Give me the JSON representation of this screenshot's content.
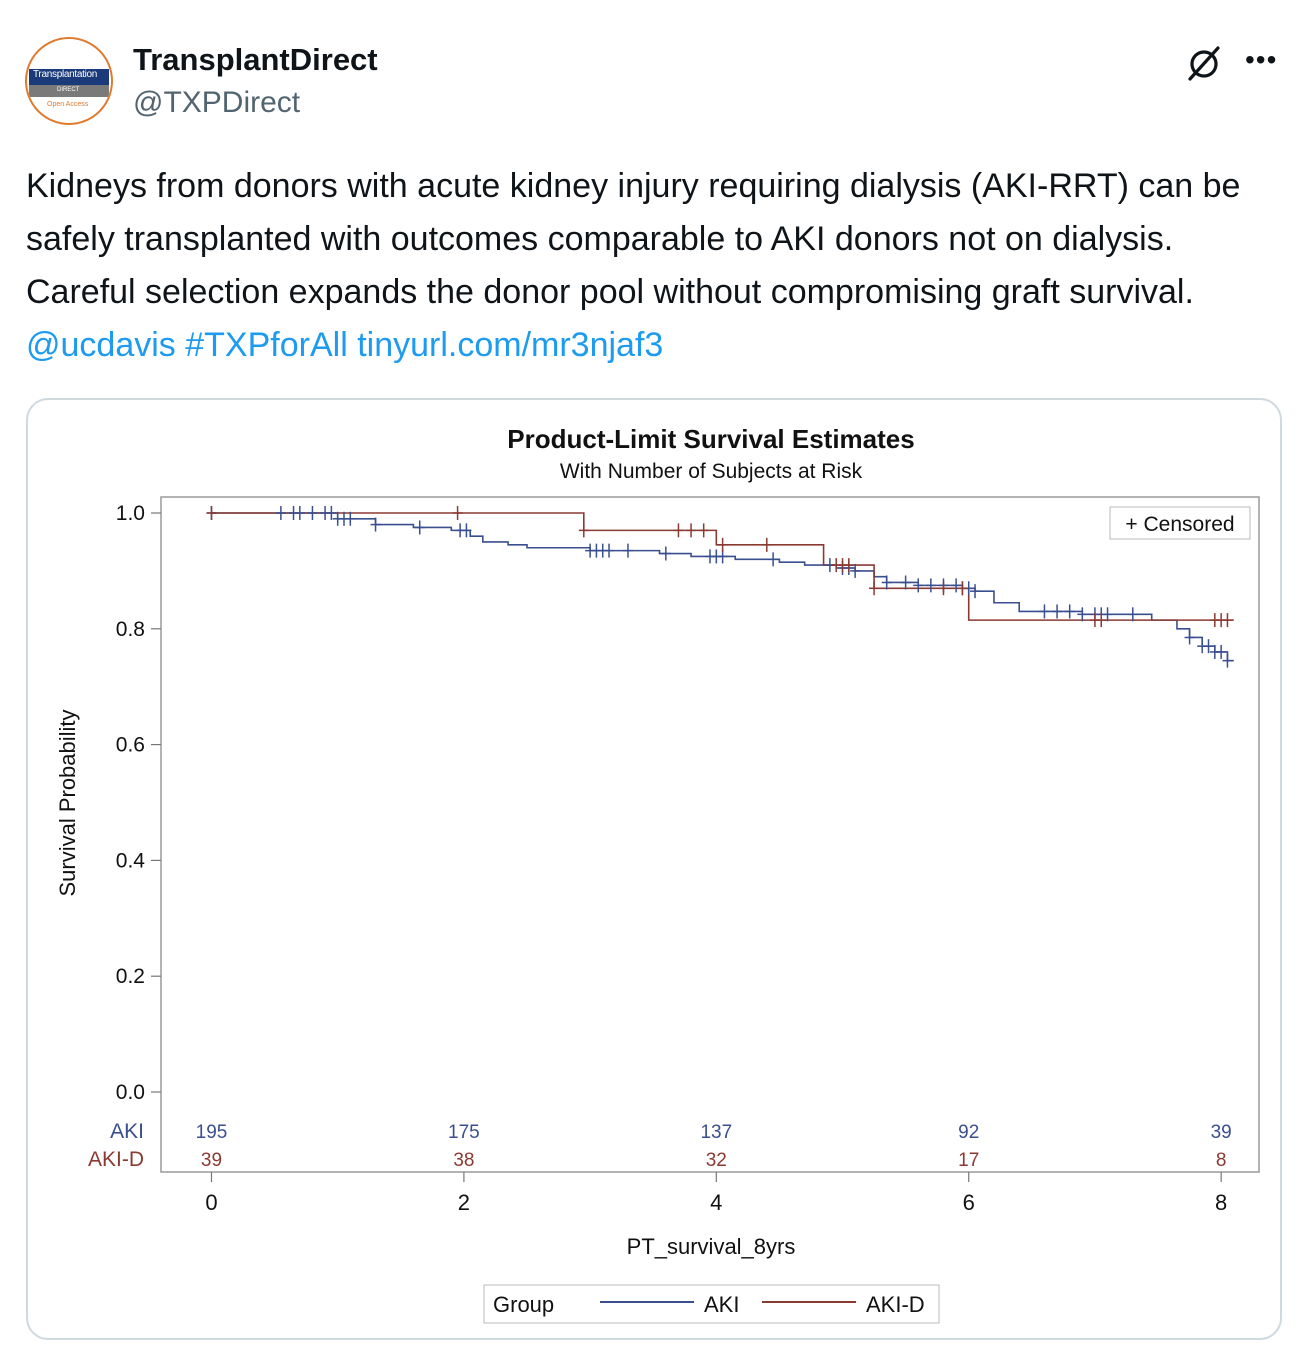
{
  "account": {
    "display_name": "TransplantDirect",
    "handle": "@TXPDirect",
    "avatar_text": "Transplantation DIRECT Open Access"
  },
  "tweet": {
    "text": "Kidneys from donors with acute kidney injury requiring dialysis (AKI-RRT) can be safely transplanted with outcomes comparable to AKI donors not on dialysis. Careful selection expands the donor pool without compromising graft survival. ",
    "mention": "@ucdavis",
    "hashtag": "#TXPforAll",
    "link": "tinyurl.com/mr3njaf3"
  },
  "icons": {
    "grok": "slashed-circle-icon",
    "more": "more-icon"
  },
  "colors": {
    "aki": "#3a4f8f",
    "akid": "#8b3a32",
    "link": "#1d9bf0"
  },
  "chart_data": {
    "type": "line",
    "title": "Product-Limit Survival Estimates",
    "subtitle": "With Number of Subjects at Risk",
    "xlabel": "PT_survival_8yrs",
    "ylabel": "Survival Probability",
    "xlim": [
      -0.4,
      8.3
    ],
    "ylim": [
      0,
      1.0
    ],
    "x_ticks": [
      "0",
      "2",
      "4",
      "6",
      "8"
    ],
    "y_ticks": [
      "0.0",
      "0.2",
      "0.4",
      "0.6",
      "0.8",
      "1.0"
    ],
    "censored_legend": "+ Censored",
    "legend_title": "Group",
    "series": [
      {
        "name": "AKI",
        "color": "#3a4f8f",
        "steps": [
          [
            0,
            1.0
          ],
          [
            1.0,
            0.99
          ],
          [
            1.3,
            0.98
          ],
          [
            1.6,
            0.975
          ],
          [
            1.9,
            0.97
          ],
          [
            2.05,
            0.96
          ],
          [
            2.15,
            0.95
          ],
          [
            2.35,
            0.945
          ],
          [
            2.5,
            0.94
          ],
          [
            3.0,
            0.935
          ],
          [
            3.55,
            0.93
          ],
          [
            3.8,
            0.925
          ],
          [
            4.15,
            0.92
          ],
          [
            4.5,
            0.915
          ],
          [
            4.7,
            0.91
          ],
          [
            4.95,
            0.905
          ],
          [
            5.1,
            0.9
          ],
          [
            5.25,
            0.89
          ],
          [
            5.35,
            0.88
          ],
          [
            5.6,
            0.875
          ],
          [
            5.95,
            0.87
          ],
          [
            6.05,
            0.865
          ],
          [
            6.2,
            0.845
          ],
          [
            6.4,
            0.83
          ],
          [
            6.9,
            0.825
          ],
          [
            7.45,
            0.815
          ],
          [
            7.65,
            0.8
          ],
          [
            7.75,
            0.785
          ],
          [
            7.85,
            0.77
          ],
          [
            7.95,
            0.76
          ],
          [
            8.05,
            0.745
          ]
        ],
        "end": 8.1,
        "censor_x": [
          0,
          0.55,
          0.65,
          0.7,
          0.8,
          0.9,
          0.95,
          1.0,
          1.05,
          1.1,
          1.3,
          1.65,
          1.97,
          2.02,
          3.0,
          3.05,
          3.1,
          3.15,
          3.3,
          3.6,
          3.95,
          4.0,
          4.05,
          4.45,
          4.9,
          5.0,
          5.05,
          5.1,
          5.35,
          5.5,
          5.6,
          5.7,
          5.8,
          5.9,
          5.95,
          6.0,
          6.05,
          6.6,
          6.7,
          6.8,
          6.9,
          7.0,
          7.05,
          7.1,
          7.3,
          7.75,
          7.85,
          7.9,
          7.95,
          8.0,
          8.05
        ]
      },
      {
        "name": "AKI-D",
        "color": "#8b3a32",
        "steps": [
          [
            0,
            1.0
          ],
          [
            2.95,
            0.97
          ],
          [
            4.0,
            0.945
          ],
          [
            4.85,
            0.91
          ],
          [
            5.25,
            0.87
          ],
          [
            6.0,
            0.815
          ]
        ],
        "end": 8.1,
        "censor_x": [
          0,
          1.95,
          2.95,
          3.7,
          3.8,
          3.9,
          4.05,
          4.4,
          4.95,
          5.0,
          5.05,
          5.25,
          5.8,
          5.95,
          7.0,
          7.05,
          7.95,
          8.0,
          8.05
        ]
      }
    ],
    "at_risk": {
      "x": [
        0,
        2,
        4,
        6,
        8
      ],
      "rows": [
        {
          "label": "AKI",
          "values": [
            "195",
            "175",
            "137",
            "92",
            "39"
          ]
        },
        {
          "label": "AKI-D",
          "values": [
            "39",
            "38",
            "32",
            "17",
            "8"
          ]
        }
      ]
    }
  }
}
